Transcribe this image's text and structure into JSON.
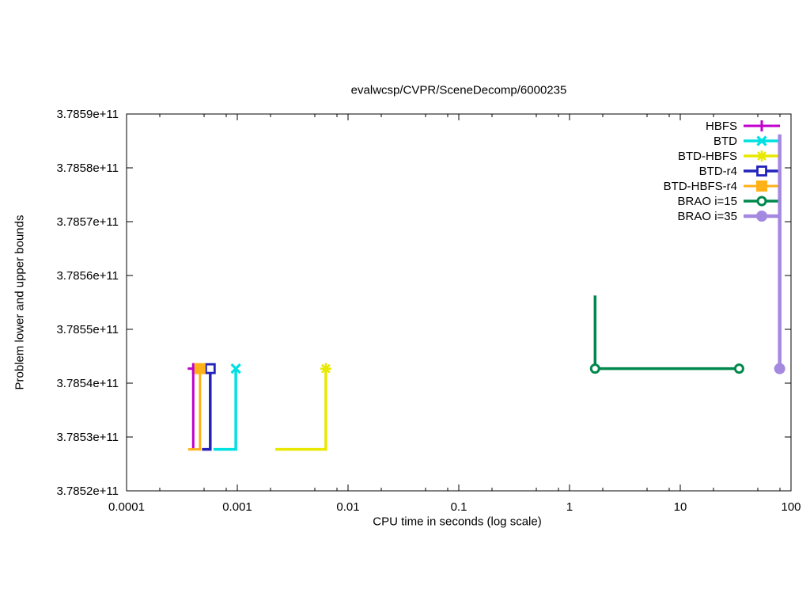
{
  "chart_data": {
    "type": "line",
    "title": "evalwcsp/CVPR/SceneDecomp/6000235",
    "xlabel": "CPU time in seconds (log scale)",
    "ylabel": "Problem lower and upper bounds",
    "x_scale": "log",
    "grid": false,
    "xlim": [
      0.0001,
      100
    ],
    "ylim": [
      378520000000.0,
      378590000000.0
    ],
    "x_ticks": [
      {
        "v": 0.0001,
        "label": "0.0001"
      },
      {
        "v": 0.001,
        "label": "0.001"
      },
      {
        "v": 0.01,
        "label": "0.01"
      },
      {
        "v": 0.1,
        "label": "0.1"
      },
      {
        "v": 1,
        "label": "1"
      },
      {
        "v": 10,
        "label": "10"
      },
      {
        "v": 100,
        "label": "100"
      }
    ],
    "x_minor_ticks": [
      2,
      5,
      8
    ],
    "y_ticks": [
      {
        "v": 378520000000.0,
        "label": "3.7852e+11"
      },
      {
        "v": 378530000000.0,
        "label": "3.7853e+11"
      },
      {
        "v": 378540000000.0,
        "label": "3.7854e+11"
      },
      {
        "v": 378550000000.0,
        "label": "3.7855e+11"
      },
      {
        "v": 378560000000.0,
        "label": "3.7856e+11"
      },
      {
        "v": 378570000000.0,
        "label": "3.7857e+11"
      },
      {
        "v": 378580000000.0,
        "label": "3.7858e+11"
      },
      {
        "v": 378590000000.0,
        "label": "3.7859e+11"
      }
    ],
    "legend_position": "top-right-inside",
    "series": [
      {
        "name": "HBFS",
        "color": "#c000cc",
        "marker": "plus",
        "lw": 3,
        "points": [
          [
            0.0004,
            378527700000.0
          ],
          [
            0.0004,
            378542700000.0
          ]
        ],
        "marker_points": [
          [
            0.0004,
            378542700000.0
          ]
        ]
      },
      {
        "name": "BTD",
        "color": "#00e0e0",
        "marker": "cross",
        "lw": 3.5,
        "points": [
          [
            0.00061,
            378527700000.0
          ],
          [
            0.00097,
            378527700000.0
          ],
          [
            0.00097,
            378542700000.0
          ]
        ],
        "marker_points": [
          [
            0.00097,
            378542700000.0
          ]
        ]
      },
      {
        "name": "BTD-HBFS",
        "color": "#e8e800",
        "marker": "star",
        "lw": 3.5,
        "points": [
          [
            0.0022,
            378527700000.0
          ],
          [
            0.0063,
            378527700000.0
          ],
          [
            0.0063,
            378542700000.0
          ]
        ],
        "marker_points": [
          [
            0.0063,
            378542700000.0
          ]
        ]
      },
      {
        "name": "BTD-r4",
        "color": "#2222bb",
        "marker": "square-open",
        "lw": 3.5,
        "points": [
          [
            0.00048,
            378527700000.0
          ],
          [
            0.00057,
            378527700000.0
          ],
          [
            0.00057,
            378542700000.0
          ]
        ],
        "marker_points": [
          [
            0.00057,
            378542700000.0
          ]
        ]
      },
      {
        "name": "BTD-HBFS-r4",
        "color": "#ffb117",
        "marker": "square-filled",
        "lw": 3,
        "points": [
          [
            0.00036,
            378527700000.0
          ],
          [
            0.00046,
            378527700000.0
          ],
          [
            0.00046,
            378542700000.0
          ]
        ],
        "marker_points": [
          [
            0.00046,
            378542700000.0
          ]
        ]
      },
      {
        "name": "BRAO i=15",
        "color": "#00884c",
        "marker": "circle-open",
        "lw": 3.5,
        "points": [
          [
            1.7,
            378556300000.0
          ],
          [
            1.7,
            378542700000.0
          ],
          [
            34,
            378542700000.0
          ]
        ],
        "marker_points": [
          [
            1.7,
            378542700000.0
          ],
          [
            34,
            378542700000.0
          ]
        ]
      },
      {
        "name": "BRAO i=35",
        "color": "#a588e0",
        "marker": "circle-filled",
        "lw": 4.5,
        "points": [
          [
            79,
            378586200000.0
          ],
          [
            79,
            378542700000.0
          ]
        ],
        "marker_points": [
          [
            79,
            378542700000.0
          ]
        ]
      }
    ]
  }
}
